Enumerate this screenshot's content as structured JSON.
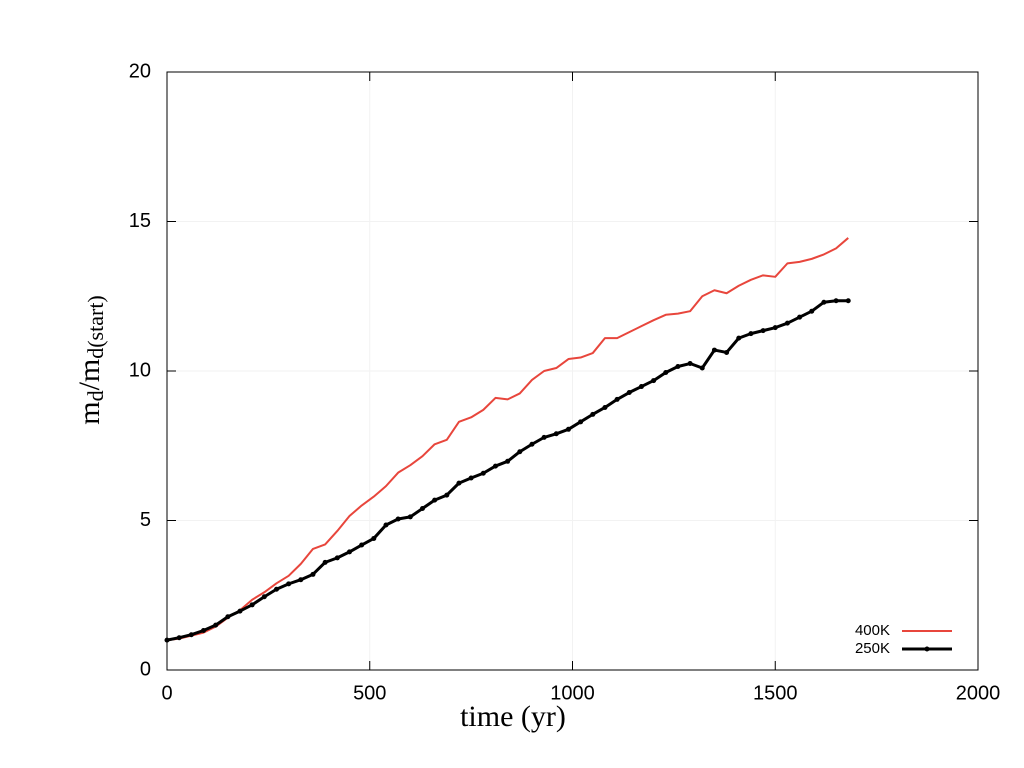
{
  "chart_data": {
    "type": "line",
    "xlabel": "time (yr)",
    "ylabel": [
      "m",
      "d",
      "/m",
      "d(start)"
    ],
    "x": [
      0,
      30,
      60,
      90,
      120,
      150,
      180,
      210,
      240,
      270,
      300,
      330,
      360,
      390,
      420,
      450,
      480,
      510,
      540,
      570,
      600,
      630,
      660,
      690,
      720,
      750,
      780,
      810,
      840,
      870,
      900,
      930,
      960,
      990,
      1020,
      1050,
      1080,
      1110,
      1140,
      1170,
      1200,
      1230,
      1260,
      1290,
      1320,
      1350,
      1380,
      1410,
      1440,
      1470,
      1500,
      1530,
      1560,
      1590,
      1620,
      1650,
      1680
    ],
    "series": [
      {
        "name": "400K",
        "color": "#e8463c",
        "markers": false,
        "values": [
          1.0,
          1.05,
          1.15,
          1.25,
          1.45,
          1.75,
          2.0,
          2.35,
          2.6,
          2.9,
          3.15,
          3.55,
          4.05,
          4.2,
          4.65,
          5.15,
          5.5,
          5.8,
          6.15,
          6.6,
          6.85,
          7.15,
          7.55,
          7.7,
          8.3,
          8.45,
          8.7,
          9.1,
          9.05,
          9.25,
          9.7,
          10.0,
          10.1,
          10.4,
          10.45,
          10.6,
          11.1,
          11.1,
          11.3,
          11.5,
          11.7,
          11.88,
          11.92,
          12.0,
          12.5,
          12.7,
          12.6,
          12.85,
          13.05,
          13.2,
          13.15,
          13.6,
          13.65,
          13.75,
          13.9,
          14.1,
          14.45
        ]
      },
      {
        "name": "250K",
        "color": "#000000",
        "markers": true,
        "values": [
          1.0,
          1.08,
          1.18,
          1.32,
          1.5,
          1.78,
          1.97,
          2.18,
          2.45,
          2.7,
          2.88,
          3.02,
          3.2,
          3.6,
          3.75,
          3.95,
          4.18,
          4.4,
          4.85,
          5.05,
          5.12,
          5.4,
          5.68,
          5.85,
          6.25,
          6.42,
          6.58,
          6.82,
          6.98,
          7.3,
          7.55,
          7.78,
          7.9,
          8.05,
          8.3,
          8.55,
          8.78,
          9.05,
          9.28,
          9.48,
          9.68,
          9.95,
          10.15,
          10.25,
          10.1,
          10.7,
          10.62,
          11.1,
          11.25,
          11.35,
          11.45,
          11.6,
          11.8,
          12.0,
          12.3,
          12.35,
          12.35
        ]
      }
    ],
    "xlim": [
      0,
      2000
    ],
    "xticks": [
      0,
      500,
      1000,
      1500,
      2000
    ],
    "ylim": [
      0,
      20
    ],
    "yticks": [
      0,
      5,
      10,
      15,
      20
    ],
    "grid": true,
    "legend": "lower right"
  }
}
